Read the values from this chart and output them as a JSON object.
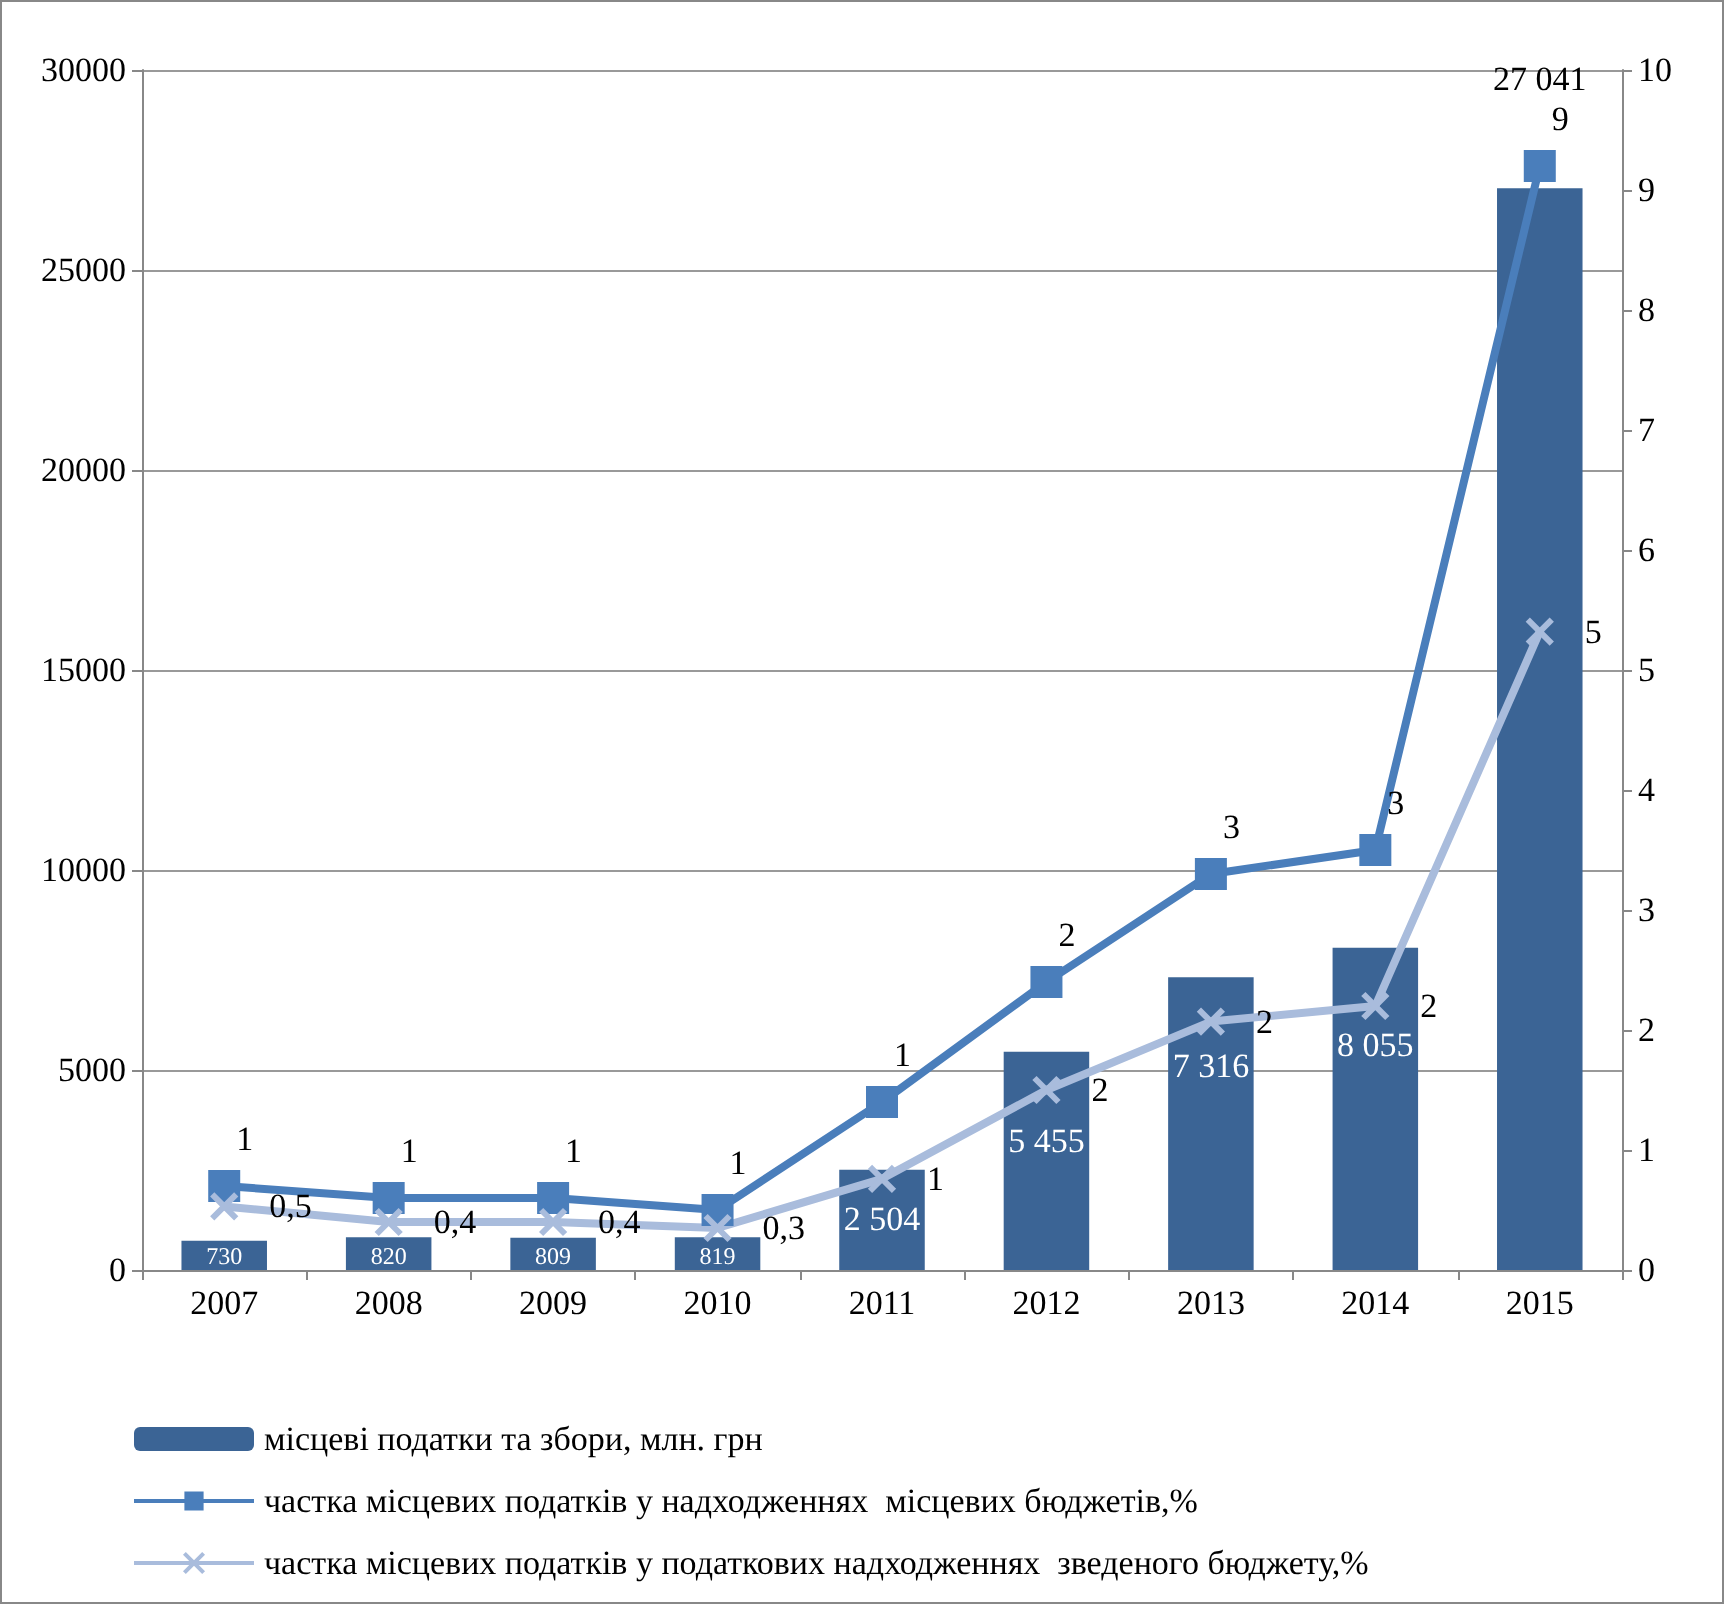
{
  "chart_data": {
    "type": "bar",
    "categories": [
      "2007",
      "2008",
      "2009",
      "2010",
      "2011",
      "2012",
      "2013",
      "2014",
      "2015"
    ],
    "series": [
      {
        "name": "місцеві податки та збори, млн. грн",
        "color": "#3b6495",
        "values": [
          730,
          820,
          809,
          819,
          2504,
          5455,
          7316,
          8055,
          27041
        ],
        "value_labels": [
          "730",
          "820",
          "809",
          "819",
          "2 504",
          "5 455",
          "7 316",
          "8 055",
          "27 041"
        ]
      },
      {
        "name": "частка місцевих податків у надходженнях  місцевих бюджетів,%",
        "type": "line",
        "axis": "y2",
        "color": "#4a7ebb",
        "marker": "square",
        "values": [
          0.7,
          0.6,
          0.6,
          0.5,
          1.4,
          2.4,
          3.3,
          3.5,
          9.2
        ],
        "value_labels": [
          "1",
          "1",
          "1",
          "1",
          "1",
          "2",
          "3",
          "3",
          "9"
        ]
      },
      {
        "name": "частка місцевих податків у податкових надходженнях  зведеного бюджету,%",
        "type": "line",
        "axis": "y2",
        "color": "#a9bcdc",
        "marker": "cross",
        "values": [
          0.53,
          0.4,
          0.4,
          0.35,
          0.76,
          1.5,
          2.07,
          2.2,
          5.32
        ],
        "value_labels": [
          "0,5",
          "0,4",
          "0,4",
          "0,3",
          "1",
          "2",
          "2",
          "2",
          "5"
        ]
      }
    ],
    "ylim": [
      0,
      30000
    ],
    "yticks": [
      0,
      5000,
      10000,
      15000,
      20000,
      25000,
      30000
    ],
    "y2lim": [
      0,
      10
    ],
    "y2ticks": [
      0,
      1,
      2,
      3,
      4,
      5,
      6,
      7,
      8,
      9,
      10
    ],
    "grid": "y",
    "legend": "bottom",
    "line_style": "solid"
  }
}
